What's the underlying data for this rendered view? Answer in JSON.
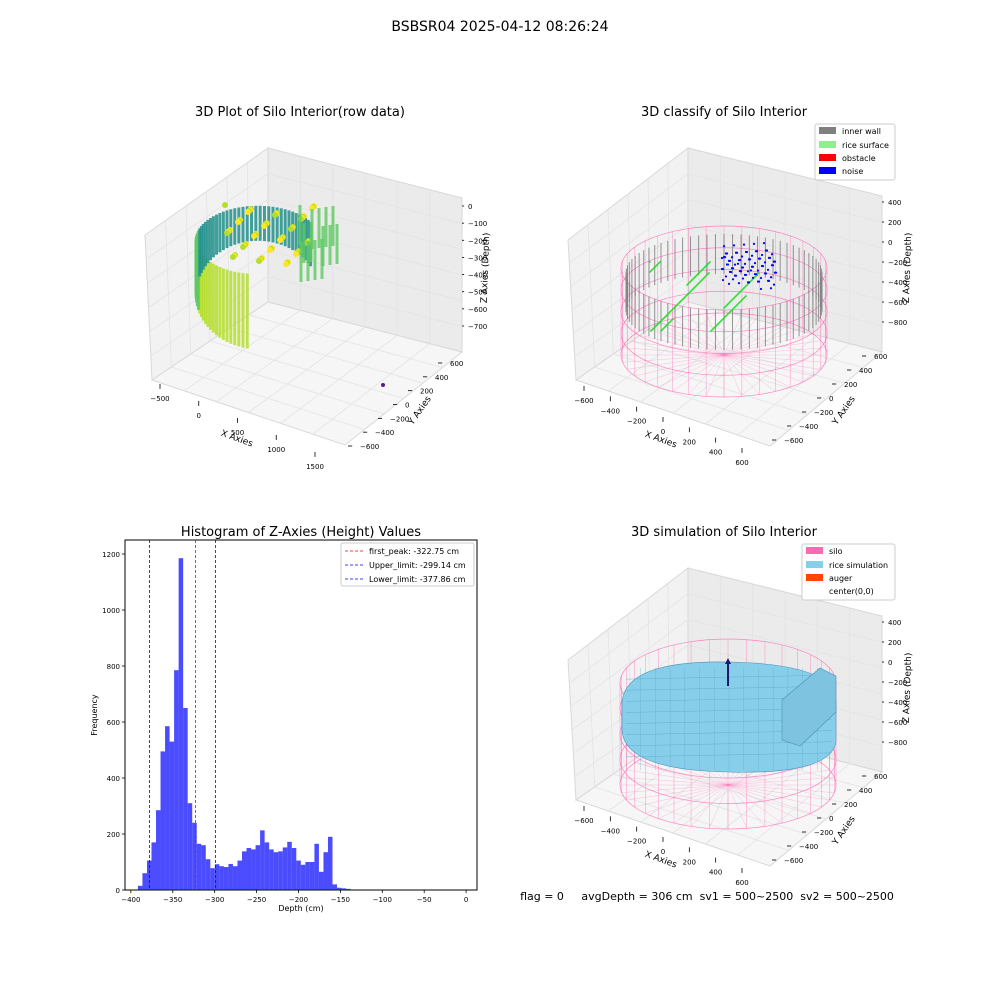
{
  "figure_title": "BSBSR04 2025-04-12 08:26:24",
  "footer_text": "flag = 0     avgDepth = 306 cm  sv1 = 500~2500  sv2 = 500~2500",
  "colors": {
    "inner_wall": "#808080",
    "rice_surface": "#90ee90",
    "obstacle": "#ff0000",
    "noise": "#0000ff",
    "silo": "#ff69b4",
    "rice_simulation": "#87ceeb",
    "auger": "#ff4500",
    "histogram_bar": "#0000ff",
    "first_peak_line": "#ff0000",
    "limit_line": "#0000ff"
  },
  "chart_data": [
    {
      "type": "scatter",
      "projection": "3d",
      "title": "3D Plot of Silo Interior(row data)",
      "xlabel": "X Axies",
      "ylabel": "Y Axies",
      "zlabel": "Z Axies (Depth)",
      "x_ticks": [
        "−500",
        "0",
        "500",
        "1000",
        "1500"
      ],
      "y_ticks": [
        "600",
        "400",
        "200",
        "0",
        "−200",
        "−400",
        "−600"
      ],
      "z_ticks": [
        "0",
        "−100",
        "−200",
        "−300",
        "−400",
        "−500",
        "−600",
        "−700"
      ],
      "colormap": "viridis"
    },
    {
      "type": "scatter",
      "projection": "3d",
      "title": "3D classify of Silo Interior",
      "xlabel": "X Axies",
      "ylabel": "Y Axies",
      "zlabel": "Z Axies (Depth)",
      "x_ticks": [
        "−600",
        "−400",
        "−200",
        "0",
        "200",
        "400",
        "600"
      ],
      "y_ticks": [
        "600",
        "400",
        "200",
        "0",
        "−200",
        "−400",
        "−600"
      ],
      "z_ticks": [
        "400",
        "200",
        "0",
        "−200",
        "−400",
        "−600",
        "−800"
      ],
      "legend": [
        "inner wall",
        "rice surface",
        "obstacle",
        "noise"
      ],
      "legend_position": "top-right"
    },
    {
      "type": "bar",
      "title": "Histogram of Z-Axies (Height) Values",
      "xlabel": "Depth (cm)",
      "ylabel": "Frequency",
      "xlim": [
        -407,
        13
      ],
      "ylim": [
        0,
        1250
      ],
      "x_ticks": [
        "−400",
        "−350",
        "−300",
        "−250",
        "−200",
        "−150",
        "−100",
        "−50",
        "0"
      ],
      "y_ticks": [
        "0",
        "200",
        "400",
        "600",
        "800",
        "1000",
        "1200"
      ],
      "bin_start": -397,
      "bin_width": 5.4,
      "values": [
        2,
        15,
        60,
        105,
        170,
        285,
        495,
        585,
        530,
        785,
        1185,
        650,
        310,
        240,
        165,
        160,
        110,
        78,
        92,
        85,
        82,
        93,
        85,
        105,
        138,
        150,
        145,
        160,
        213,
        170,
        145,
        135,
        138,
        152,
        172,
        150,
        105,
        90,
        100,
        100,
        165,
        65,
        135,
        190,
        20,
        8,
        6,
        4
      ],
      "vlines": [
        {
          "label": "first_peak: -322.75 cm",
          "x": -322.75,
          "color": "#ff0000"
        },
        {
          "label": "Upper_limit: -299.14 cm",
          "x": -299.14,
          "color": "#0000ff"
        },
        {
          "label": "Lower_limit: -377.86 cm",
          "x": -377.86,
          "color": "#0000ff"
        }
      ],
      "legend_position": "top-right"
    },
    {
      "type": "surface",
      "projection": "3d",
      "title": "3D simulation of Silo Interior",
      "xlabel": "X Axies",
      "ylabel": "Y Axies",
      "zlabel": "Z Axies (Depth)",
      "x_ticks": [
        "−600",
        "−400",
        "−200",
        "0",
        "200",
        "400",
        "600"
      ],
      "y_ticks": [
        "600",
        "400",
        "200",
        "0",
        "−200",
        "−400",
        "−600"
      ],
      "z_ticks": [
        "400",
        "200",
        "0",
        "−200",
        "−400",
        "−600",
        "−800"
      ],
      "legend": [
        "silo",
        "rice simulation",
        "auger",
        "center(0,0)"
      ],
      "legend_position": "top-right"
    }
  ]
}
